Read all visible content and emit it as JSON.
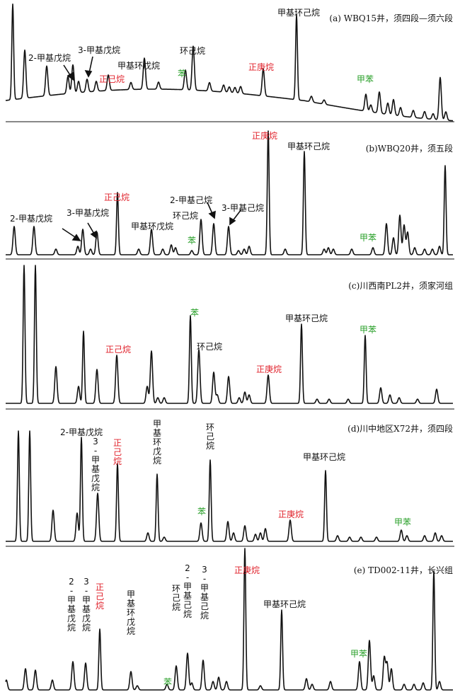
{
  "colors": {
    "trace": "#111111",
    "black": "#111111",
    "red": "#e0202a",
    "green": "#2aa02a"
  },
  "chart_data": [
    {
      "type": "line",
      "title": "(a) WBQ15井，须四段—须六段",
      "peaks": [
        {
          "x": 18,
          "h": 135
        },
        {
          "x": 35,
          "h": 68
        },
        {
          "x": 66,
          "h": 42
        },
        {
          "x": 96,
          "h": 24
        },
        {
          "x": 103,
          "h": 40
        },
        {
          "x": 111,
          "h": 16
        },
        {
          "x": 123,
          "h": 18
        },
        {
          "x": 136,
          "h": 14
        },
        {
          "x": 153,
          "h": 22
        },
        {
          "x": 185,
          "h": 10
        },
        {
          "x": 204,
          "h": 44
        },
        {
          "x": 224,
          "h": 10
        },
        {
          "x": 262,
          "h": 28
        },
        {
          "x": 273,
          "h": 62
        },
        {
          "x": 296,
          "h": 12
        },
        {
          "x": 316,
          "h": 10
        },
        {
          "x": 324,
          "h": 8
        },
        {
          "x": 332,
          "h": 8
        },
        {
          "x": 340,
          "h": 10
        },
        {
          "x": 372,
          "h": 38
        },
        {
          "x": 419,
          "h": 120
        },
        {
          "x": 440,
          "h": 8
        },
        {
          "x": 458,
          "h": 6
        },
        {
          "x": 517,
          "h": 24
        },
        {
          "x": 524,
          "h": 10
        },
        {
          "x": 536,
          "h": 30
        },
        {
          "x": 548,
          "h": 16
        },
        {
          "x": 556,
          "h": 22
        },
        {
          "x": 566,
          "h": 12
        },
        {
          "x": 584,
          "h": 10
        },
        {
          "x": 600,
          "h": 10
        },
        {
          "x": 612,
          "h": 8
        },
        {
          "x": 622,
          "h": 60
        },
        {
          "x": 630,
          "h": 12
        }
      ],
      "labels": [
        {
          "text": "2-甲基戊烷",
          "color": "black",
          "vertical": false
        },
        {
          "text": "3-甲基戊烷",
          "color": "black",
          "vertical": false
        },
        {
          "text": "正己烷",
          "color": "red",
          "vertical": false
        },
        {
          "text": "甲基环戊烷",
          "color": "black",
          "vertical": false
        },
        {
          "text": "苯",
          "color": "green",
          "vertical": false
        },
        {
          "text": "环己烷",
          "color": "black",
          "vertical": false
        },
        {
          "text": "正庚烷",
          "color": "red",
          "vertical": false
        },
        {
          "text": "甲基环己烷",
          "color": "black",
          "vertical": false
        },
        {
          "text": "甲苯",
          "color": "green",
          "vertical": false
        }
      ]
    },
    {
      "type": "line",
      "title": "(b)WBQ20井，须五段",
      "peaks": [
        {
          "x": 20,
          "h": 40
        },
        {
          "x": 48,
          "h": 40
        },
        {
          "x": 79,
          "h": 8
        },
        {
          "x": 110,
          "h": 12
        },
        {
          "x": 117,
          "h": 36
        },
        {
          "x": 128,
          "h": 8
        },
        {
          "x": 137,
          "h": 32
        },
        {
          "x": 166,
          "h": 88
        },
        {
          "x": 196,
          "h": 8
        },
        {
          "x": 214,
          "h": 36
        },
        {
          "x": 230,
          "h": 8
        },
        {
          "x": 242,
          "h": 14
        },
        {
          "x": 248,
          "h": 10
        },
        {
          "x": 271,
          "h": 6
        },
        {
          "x": 284,
          "h": 50
        },
        {
          "x": 302,
          "h": 44
        },
        {
          "x": 323,
          "h": 40
        },
        {
          "x": 337,
          "h": 6
        },
        {
          "x": 345,
          "h": 8
        },
        {
          "x": 352,
          "h": 12
        },
        {
          "x": 379,
          "h": 175
        },
        {
          "x": 403,
          "h": 8
        },
        {
          "x": 430,
          "h": 146
        },
        {
          "x": 458,
          "h": 8
        },
        {
          "x": 464,
          "h": 10
        },
        {
          "x": 471,
          "h": 8
        },
        {
          "x": 497,
          "h": 8
        },
        {
          "x": 527,
          "h": 10
        },
        {
          "x": 546,
          "h": 44
        },
        {
          "x": 556,
          "h": 24
        },
        {
          "x": 565,
          "h": 56
        },
        {
          "x": 571,
          "h": 42
        },
        {
          "x": 576,
          "h": 32
        },
        {
          "x": 586,
          "h": 10
        },
        {
          "x": 600,
          "h": 8
        },
        {
          "x": 611,
          "h": 8
        },
        {
          "x": 621,
          "h": 12
        },
        {
          "x": 629,
          "h": 126
        }
      ],
      "labels": [
        {
          "text": "2-甲基戊烷",
          "color": "black",
          "vertical": false
        },
        {
          "text": "3-甲基戊烷",
          "color": "black",
          "vertical": false
        },
        {
          "text": "正己烷",
          "color": "red",
          "vertical": false
        },
        {
          "text": "甲基环戊烷",
          "color": "black",
          "vertical": false
        },
        {
          "text": "苯",
          "color": "green",
          "vertical": false
        },
        {
          "text": "环己烷",
          "color": "black",
          "vertical": false
        },
        {
          "text": "2-甲基己烷",
          "color": "black",
          "vertical": false
        },
        {
          "text": "3-甲基己烷",
          "color": "black",
          "vertical": false
        },
        {
          "text": "正庚烷",
          "color": "red",
          "vertical": false
        },
        {
          "text": "甲基环己烷",
          "color": "black",
          "vertical": false
        },
        {
          "text": "甲苯",
          "color": "green",
          "vertical": false
        }
      ]
    },
    {
      "type": "line",
      "title": "(c)川西南PL2井，须家河组",
      "peaks": [
        {
          "x": 34,
          "h": 195
        },
        {
          "x": 50,
          "h": 195
        },
        {
          "x": 79,
          "h": 52
        },
        {
          "x": 111,
          "h": 24
        },
        {
          "x": 118,
          "h": 102
        },
        {
          "x": 137,
          "h": 48
        },
        {
          "x": 165,
          "h": 68
        },
        {
          "x": 208,
          "h": 24
        },
        {
          "x": 214,
          "h": 74
        },
        {
          "x": 223,
          "h": 8
        },
        {
          "x": 232,
          "h": 8
        },
        {
          "x": 269,
          "h": 124
        },
        {
          "x": 281,
          "h": 76
        },
        {
          "x": 302,
          "h": 44
        },
        {
          "x": 307,
          "h": 12
        },
        {
          "x": 323,
          "h": 38
        },
        {
          "x": 338,
          "h": 8
        },
        {
          "x": 346,
          "h": 16
        },
        {
          "x": 352,
          "h": 12
        },
        {
          "x": 379,
          "h": 40
        },
        {
          "x": 426,
          "h": 112
        },
        {
          "x": 448,
          "h": 6
        },
        {
          "x": 465,
          "h": 6
        },
        {
          "x": 492,
          "h": 6
        },
        {
          "x": 516,
          "h": 96
        },
        {
          "x": 538,
          "h": 22
        },
        {
          "x": 551,
          "h": 12
        },
        {
          "x": 564,
          "h": 8
        },
        {
          "x": 590,
          "h": 6
        },
        {
          "x": 617,
          "h": 20
        }
      ],
      "labels": [
        {
          "text": "正己烷",
          "color": "red",
          "vertical": false
        },
        {
          "text": "苯",
          "color": "green",
          "vertical": false
        },
        {
          "text": "环己烷",
          "color": "black",
          "vertical": false
        },
        {
          "text": "正庚烷",
          "color": "red",
          "vertical": false
        },
        {
          "text": "甲基环己烷",
          "color": "black",
          "vertical": false
        },
        {
          "text": "甲苯",
          "color": "green",
          "vertical": false
        }
      ]
    },
    {
      "type": "line",
      "title": "(d)川中地区X72井，须四段",
      "peaks": [
        {
          "x": 26,
          "h": 156
        },
        {
          "x": 42,
          "h": 156
        },
        {
          "x": 75,
          "h": 44
        },
        {
          "x": 109,
          "h": 40
        },
        {
          "x": 115,
          "h": 147
        },
        {
          "x": 138,
          "h": 68
        },
        {
          "x": 166,
          "h": 110
        },
        {
          "x": 209,
          "h": 12
        },
        {
          "x": 222,
          "h": 95
        },
        {
          "x": 232,
          "h": 6
        },
        {
          "x": 284,
          "h": 26
        },
        {
          "x": 297,
          "h": 115
        },
        {
          "x": 322,
          "h": 28
        },
        {
          "x": 330,
          "h": 12
        },
        {
          "x": 346,
          "h": 22
        },
        {
          "x": 361,
          "h": 10
        },
        {
          "x": 368,
          "h": 12
        },
        {
          "x": 375,
          "h": 18
        },
        {
          "x": 410,
          "h": 30
        },
        {
          "x": 460,
          "h": 100
        },
        {
          "x": 477,
          "h": 8
        },
        {
          "x": 494,
          "h": 6
        },
        {
          "x": 510,
          "h": 6
        },
        {
          "x": 532,
          "h": 6
        },
        {
          "x": 567,
          "h": 16
        },
        {
          "x": 575,
          "h": 8
        },
        {
          "x": 600,
          "h": 8
        },
        {
          "x": 615,
          "h": 12
        },
        {
          "x": 624,
          "h": 8
        }
      ],
      "labels": [
        {
          "text": "2-甲基戊烷",
          "color": "black",
          "vertical": false
        },
        {
          "text": "3-甲基戊烷",
          "color": "black",
          "vertical": true
        },
        {
          "text": "正己烷",
          "color": "red",
          "vertical": true
        },
        {
          "text": "甲基环戊烷",
          "color": "black",
          "vertical": true
        },
        {
          "text": "苯",
          "color": "green",
          "vertical": false
        },
        {
          "text": "环己烷",
          "color": "black",
          "vertical": true
        },
        {
          "text": "正庚烷",
          "color": "red",
          "vertical": false
        },
        {
          "text": "甲基环己烷",
          "color": "black",
          "vertical": false
        },
        {
          "text": "甲苯",
          "color": "green",
          "vertical": false
        }
      ]
    },
    {
      "type": "line",
      "title": "(e) TD002-11井，长兴组",
      "peaks": [
        {
          "x": 9,
          "h": 14
        },
        {
          "x": 36,
          "h": 30
        },
        {
          "x": 50,
          "h": 28
        },
        {
          "x": 74,
          "h": 14
        },
        {
          "x": 103,
          "h": 40
        },
        {
          "x": 121,
          "h": 38
        },
        {
          "x": 141,
          "h": 86
        },
        {
          "x": 185,
          "h": 26
        },
        {
          "x": 194,
          "h": 6
        },
        {
          "x": 236,
          "h": 8
        },
        {
          "x": 249,
          "h": 34
        },
        {
          "x": 265,
          "h": 52
        },
        {
          "x": 271,
          "h": 10
        },
        {
          "x": 287,
          "h": 42
        },
        {
          "x": 301,
          "h": 12
        },
        {
          "x": 309,
          "h": 18
        },
        {
          "x": 320,
          "h": 12
        },
        {
          "x": 346,
          "h": 200
        },
        {
          "x": 368,
          "h": 6
        },
        {
          "x": 398,
          "h": 113
        },
        {
          "x": 433,
          "h": 16
        },
        {
          "x": 441,
          "h": 8
        },
        {
          "x": 467,
          "h": 12
        },
        {
          "x": 508,
          "h": 40
        },
        {
          "x": 522,
          "h": 70
        },
        {
          "x": 528,
          "h": 20
        },
        {
          "x": 543,
          "h": 46
        },
        {
          "x": 547,
          "h": 38
        },
        {
          "x": 553,
          "h": 30
        },
        {
          "x": 571,
          "h": 8
        },
        {
          "x": 585,
          "h": 8
        },
        {
          "x": 598,
          "h": 10
        },
        {
          "x": 613,
          "h": 168
        },
        {
          "x": 621,
          "h": 12
        }
      ],
      "labels": [
        {
          "text": "2-甲基戊烷",
          "color": "black",
          "vertical": true
        },
        {
          "text": "3-甲基戊烷",
          "color": "black",
          "vertical": true
        },
        {
          "text": "正己烷",
          "color": "red",
          "vertical": true
        },
        {
          "text": "甲基环戊烷",
          "color": "black",
          "vertical": true
        },
        {
          "text": "苯",
          "color": "green",
          "vertical": false
        },
        {
          "text": "环己烷",
          "color": "black",
          "vertical": true
        },
        {
          "text": "2-甲基己烷",
          "color": "black",
          "vertical": true
        },
        {
          "text": "3-甲基己烷",
          "color": "black",
          "vertical": true
        },
        {
          "text": "正庚烷",
          "color": "red",
          "vertical": false
        },
        {
          "text": "甲基环己烷",
          "color": "black",
          "vertical": false
        },
        {
          "text": "甲苯",
          "color": "green",
          "vertical": false
        }
      ]
    }
  ]
}
